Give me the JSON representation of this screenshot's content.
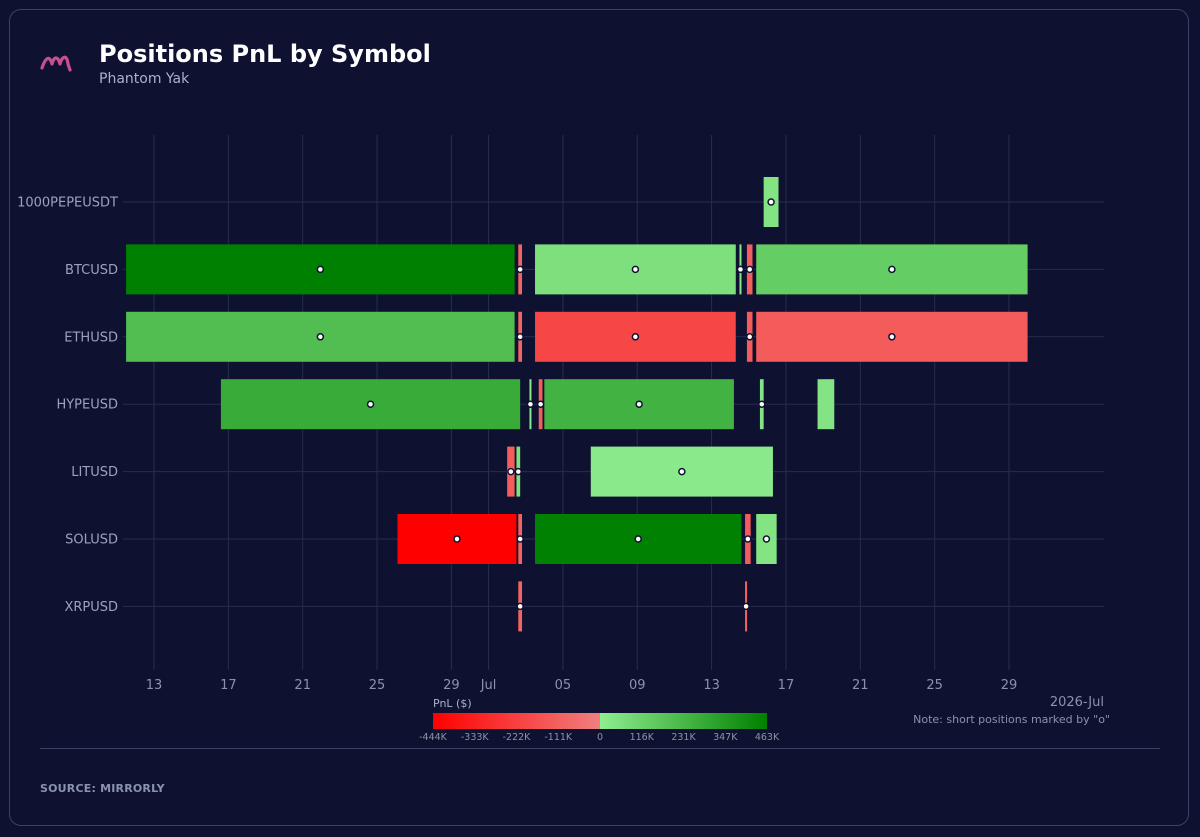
{
  "header": {
    "title": "Positions PnL by Symbol",
    "subtitle": "Phantom Yak",
    "logo_icon": "mirrorly-m-logo-icon"
  },
  "footer": {
    "source": "SOURCE: MIRRORLY"
  },
  "colors": {
    "background": "#0e1230",
    "grid": "#262d4d",
    "marker_fill": "#ffffff",
    "marker_stroke": "#0e1230",
    "logo": "#c94f8f"
  },
  "chart_data": {
    "type": "timeline",
    "x_axis": {
      "type": "date",
      "range": [
        "2026-06-11",
        "2026-07-30"
      ],
      "ticks": [
        {
          "date": "2026-06-13",
          "label": "13"
        },
        {
          "date": "2026-06-17",
          "label": "17"
        },
        {
          "date": "2026-06-21",
          "label": "21"
        },
        {
          "date": "2026-06-25",
          "label": "25"
        },
        {
          "date": "2026-06-29",
          "label": "29"
        },
        {
          "date": "2026-07-01",
          "label": "Jul"
        },
        {
          "date": "2026-07-05",
          "label": "05"
        },
        {
          "date": "2026-07-09",
          "label": "09"
        },
        {
          "date": "2026-07-13",
          "label": "13"
        },
        {
          "date": "2026-07-17",
          "label": "17"
        },
        {
          "date": "2026-07-21",
          "label": "21"
        },
        {
          "date": "2026-07-25",
          "label": "25"
        },
        {
          "date": "2026-07-29",
          "label": "29"
        }
      ],
      "period_label": "2026-Jul"
    },
    "y_axis": {
      "categories": [
        "1000PEPEUSDT",
        "BTCUSD",
        "ETHUSD",
        "HYPEUSD",
        "LITUSD",
        "SOLUSD",
        "XRPUSD"
      ]
    },
    "note": "Note: short positions marked by \"o\"",
    "colorbar": {
      "label": "PnL ($)",
      "range": [
        -444000,
        463000
      ],
      "ticks": [
        "-444K",
        "-333K",
        "-222K",
        "-111K",
        "0",
        "116K",
        "231K",
        "347K",
        "463K"
      ],
      "neg_colors": [
        "#ff0000",
        "#f08080"
      ],
      "pos_colors": [
        "#90ee90",
        "#008000"
      ]
    },
    "positions": [
      {
        "symbol": "1000PEPEUSDT",
        "start": "2026-07-15.8",
        "end": "2026-07-16.6",
        "pnl": 40000,
        "short": true
      },
      {
        "symbol": "BTCUSD",
        "start": "2026-06-11.5",
        "end": "2026-07-02.4",
        "pnl": 463000,
        "short": true
      },
      {
        "symbol": "BTCUSD",
        "start": "2026-07-02.6",
        "end": "2026-07-02.8",
        "pnl": -100000,
        "short": true
      },
      {
        "symbol": "BTCUSD",
        "start": "2026-07-03.5",
        "end": "2026-07-14.3",
        "pnl": 60000,
        "short": true
      },
      {
        "symbol": "BTCUSD",
        "start": "2026-07-14.5",
        "end": "2026-07-14.6",
        "pnl": 30000,
        "short": true
      },
      {
        "symbol": "BTCUSD",
        "start": "2026-07-14.9",
        "end": "2026-07-15.2",
        "pnl": -120000,
        "short": true
      },
      {
        "symbol": "BTCUSD",
        "start": "2026-07-15.4",
        "end": "2026-07-30.0",
        "pnl": 140000,
        "short": true
      },
      {
        "symbol": "ETHUSD",
        "start": "2026-06-11.5",
        "end": "2026-07-02.4",
        "pnl": 200000,
        "short": true
      },
      {
        "symbol": "ETHUSD",
        "start": "2026-07-02.6",
        "end": "2026-07-02.8",
        "pnl": -100000,
        "short": true
      },
      {
        "symbol": "ETHUSD",
        "start": "2026-07-03.5",
        "end": "2026-07-14.3",
        "pnl": -200000,
        "short": true
      },
      {
        "symbol": "ETHUSD",
        "start": "2026-07-14.9",
        "end": "2026-07-15.2",
        "pnl": -130000,
        "short": true
      },
      {
        "symbol": "ETHUSD",
        "start": "2026-07-15.4",
        "end": "2026-07-30.0",
        "pnl": -130000,
        "short": true
      },
      {
        "symbol": "HYPEUSD",
        "start": "2026-06-16.6",
        "end": "2026-07-02.7",
        "pnl": 280000,
        "short": true
      },
      {
        "symbol": "HYPEUSD",
        "start": "2026-07-03.2",
        "end": "2026-07-03.3",
        "pnl": 20000,
        "short": true
      },
      {
        "symbol": "HYPEUSD",
        "start": "2026-07-03.7",
        "end": "2026-07-03.9",
        "pnl": -120000,
        "short": true
      },
      {
        "symbol": "HYPEUSD",
        "start": "2026-07-04.0",
        "end": "2026-07-14.2",
        "pnl": 250000,
        "short": true
      },
      {
        "symbol": "HYPEUSD",
        "start": "2026-07-15.6",
        "end": "2026-07-15.8",
        "pnl": 40000,
        "short": true
      },
      {
        "symbol": "HYPEUSD",
        "start": "2026-07-18.7",
        "end": "2026-07-19.6",
        "pnl": 40000,
        "short": false
      },
      {
        "symbol": "LITUSD",
        "start": "2026-07-02.0",
        "end": "2026-07-02.4",
        "pnl": -120000,
        "short": true
      },
      {
        "symbol": "LITUSD",
        "start": "2026-07-02.5",
        "end": "2026-07-02.7",
        "pnl": 60000,
        "short": true
      },
      {
        "symbol": "LITUSD",
        "start": "2026-07-06.5",
        "end": "2026-07-16.3",
        "pnl": 20000,
        "short": true
      },
      {
        "symbol": "SOLUSD",
        "start": "2026-06-26.1",
        "end": "2026-07-02.5",
        "pnl": -444000,
        "short": true
      },
      {
        "symbol": "SOLUSD",
        "start": "2026-07-02.6",
        "end": "2026-07-02.8",
        "pnl": -100000,
        "short": true
      },
      {
        "symbol": "SOLUSD",
        "start": "2026-07-03.5",
        "end": "2026-07-14.6",
        "pnl": 460000,
        "short": true
      },
      {
        "symbol": "SOLUSD",
        "start": "2026-07-14.8",
        "end": "2026-07-15.1",
        "pnl": -130000,
        "short": true
      },
      {
        "symbol": "SOLUSD",
        "start": "2026-07-15.4",
        "end": "2026-07-16.5",
        "pnl": 40000,
        "short": true
      },
      {
        "symbol": "XRPUSD",
        "start": "2026-07-02.6",
        "end": "2026-07-02.8",
        "pnl": -100000,
        "short": true
      },
      {
        "symbol": "XRPUSD",
        "start": "2026-07-14.8",
        "end": "2026-07-14.9",
        "pnl": -100000,
        "short": true
      }
    ]
  }
}
